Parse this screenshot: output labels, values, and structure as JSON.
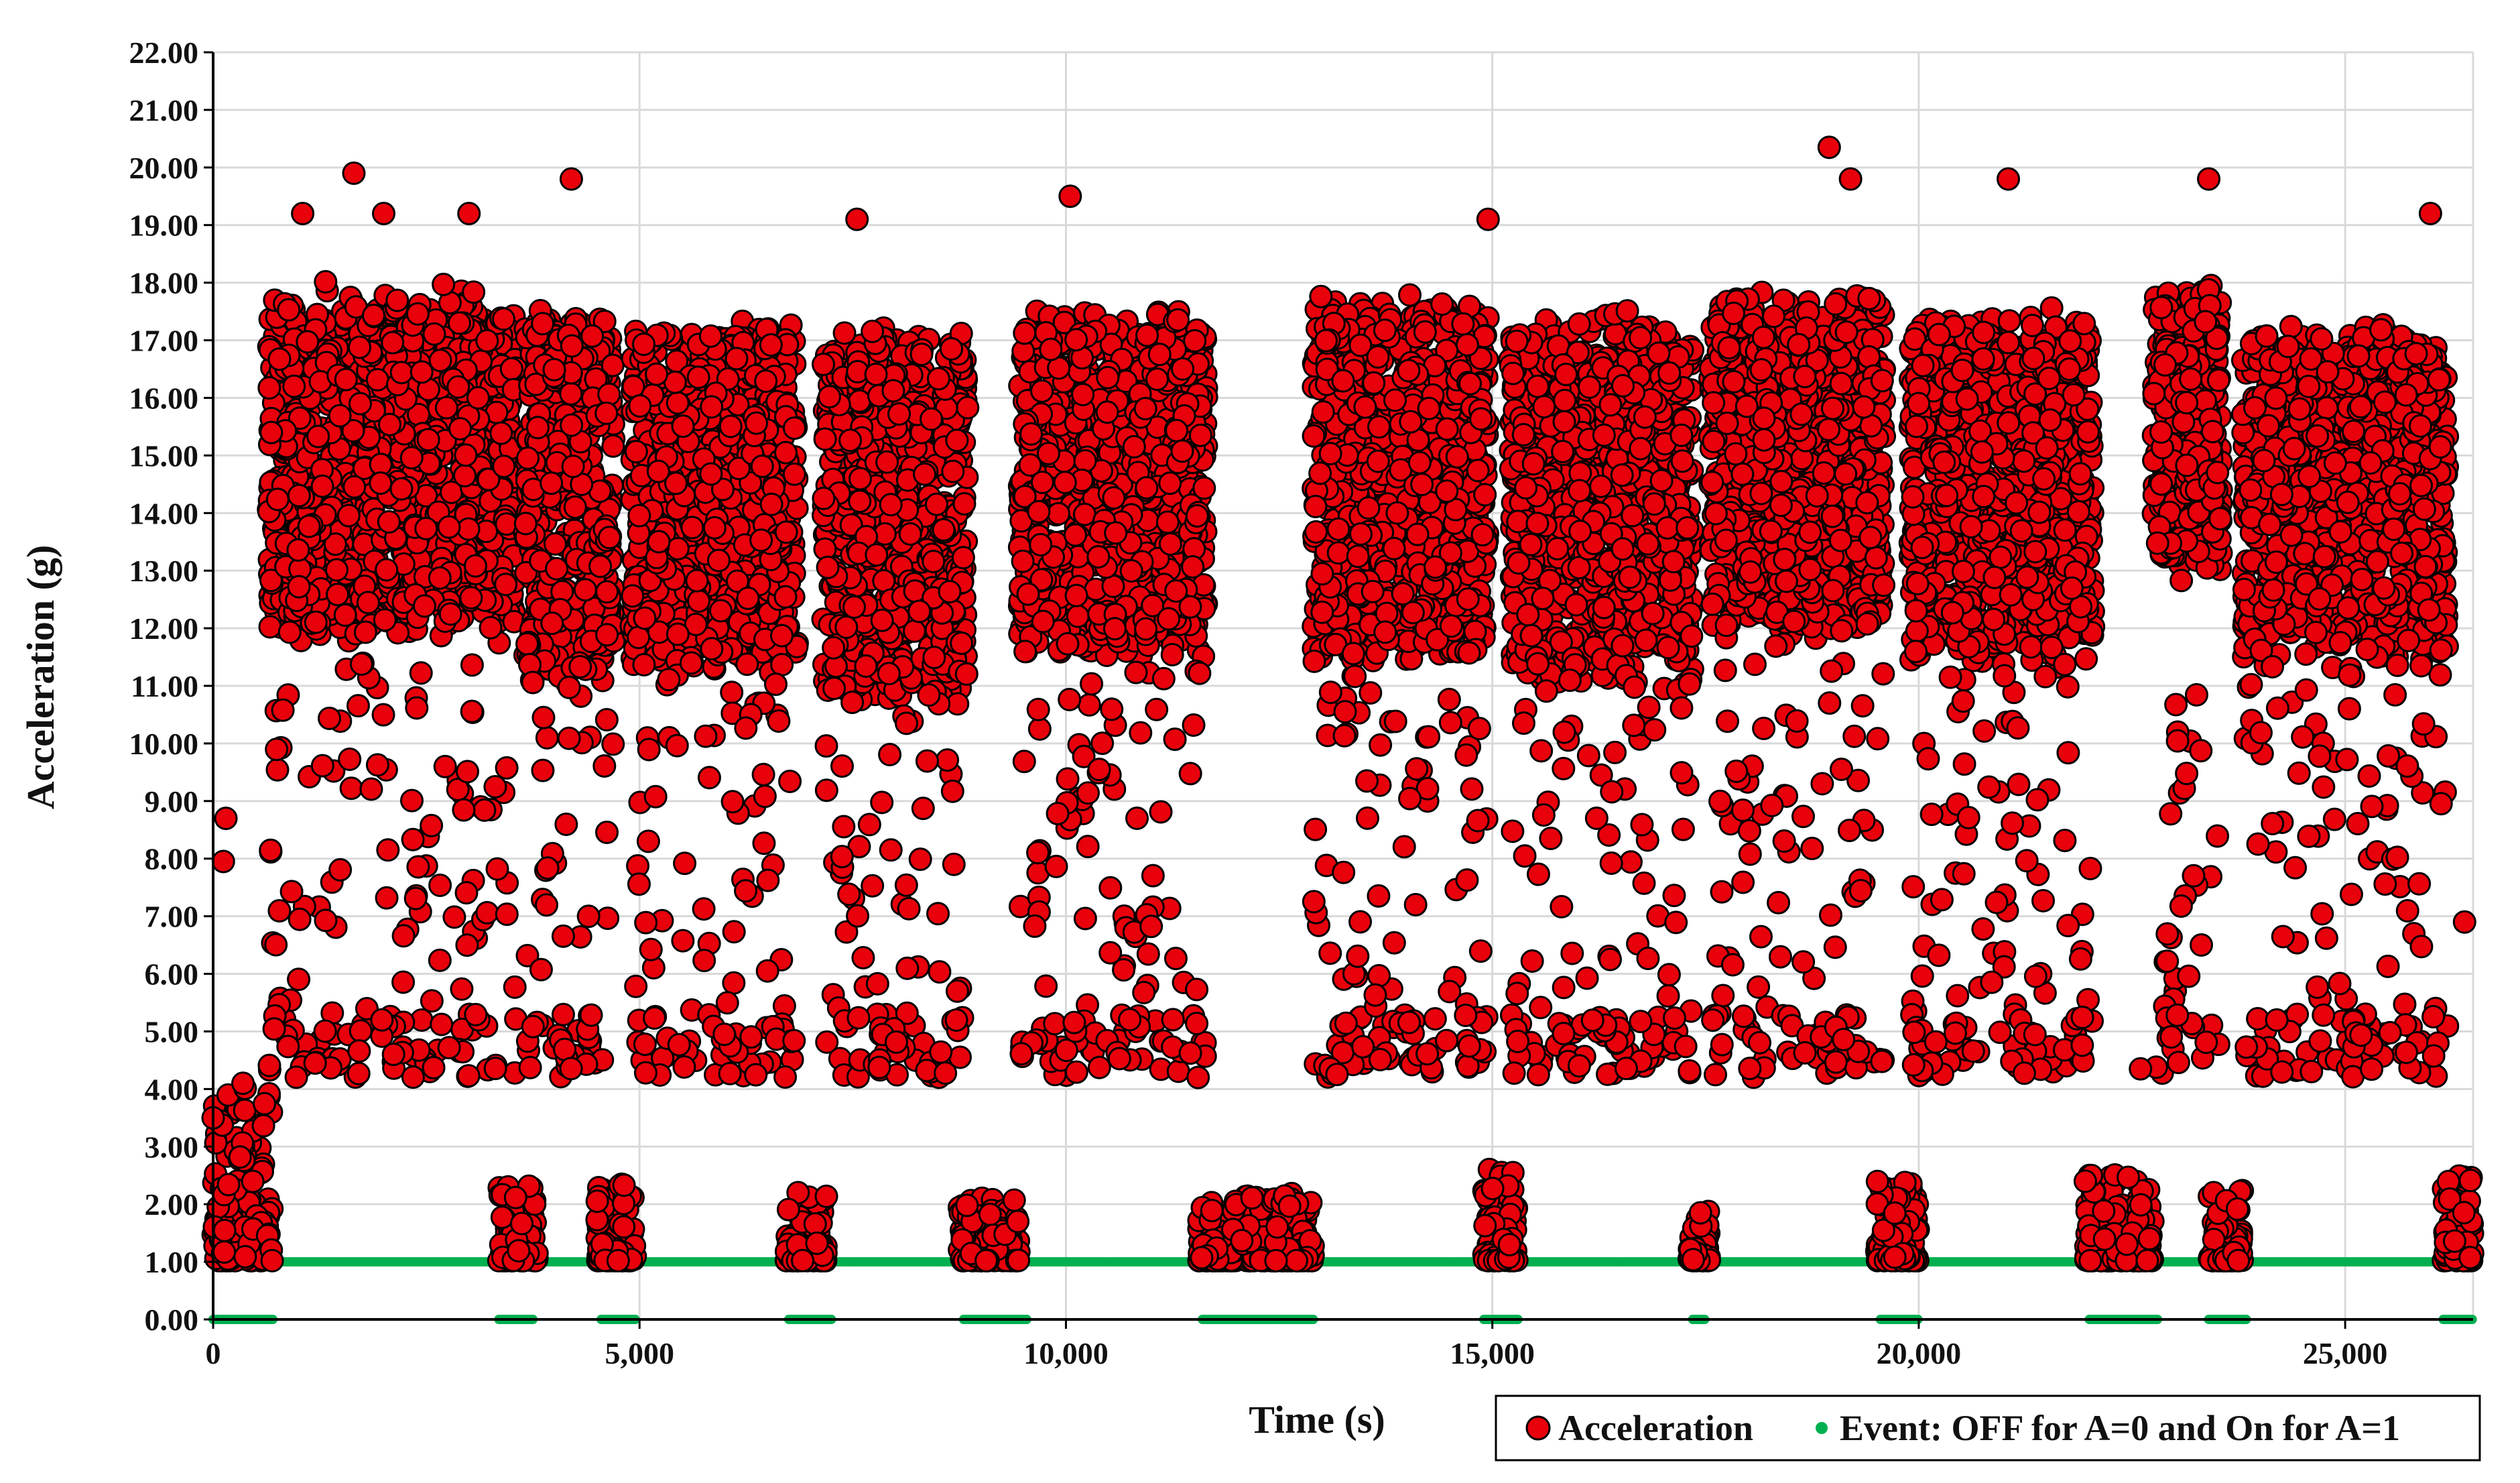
{
  "chart_data": {
    "type": "scatter",
    "xlabel": "Time (s)",
    "ylabel": "Acceleration (g)",
    "xlim": [
      0,
      26500
    ],
    "ylim": [
      0,
      22
    ],
    "x_ticks": [
      0,
      5000,
      10000,
      15000,
      20000,
      25000
    ],
    "x_tick_labels": [
      "0",
      "5,000",
      "10,000",
      "15,000",
      "20,000",
      "25,000"
    ],
    "y_ticks": [
      0,
      1,
      2,
      3,
      4,
      5,
      6,
      7,
      8,
      9,
      10,
      11,
      12,
      13,
      14,
      15,
      16,
      17,
      18,
      19,
      20,
      21,
      22
    ],
    "y_tick_labels": [
      "0.00",
      "1.00",
      "2.00",
      "3.00",
      "4.00",
      "5.00",
      "6.00",
      "7.00",
      "8.00",
      "9.00",
      "10.00",
      "11.00",
      "12.00",
      "13.00",
      "14.00",
      "15.00",
      "16.00",
      "17.00",
      "18.00",
      "19.00",
      "20.00",
      "21.00",
      "22.00"
    ],
    "grid": true,
    "legend_position": "bottom-right",
    "series": [
      {
        "name": "Acceleration",
        "color": "#e8000b",
        "edge_color": "#000000",
        "marker": "circle",
        "active_clusters": [
          {
            "x": [
              650,
              3550
            ],
            "y_center": 14.8,
            "y_spread": 3.2
          },
          {
            "x": [
              3650,
              4700
            ],
            "y_center": 14.3,
            "y_spread": 3.5
          },
          {
            "x": [
              4900,
              6850
            ],
            "y_center": 14.3,
            "y_spread": 3.2
          },
          {
            "x": [
              7150,
              8850
            ],
            "y_center": 13.9,
            "y_spread": 3.5
          },
          {
            "x": [
              9450,
              11650
            ],
            "y_center": 14.5,
            "y_spread": 3.2
          },
          {
            "x": [
              12900,
              14950
            ],
            "y_center": 14.5,
            "y_spread": 3.4
          },
          {
            "x": [
              15200,
              17350
            ],
            "y_center": 14.2,
            "y_spread": 3.4
          },
          {
            "x": [
              17550,
              19600
            ],
            "y_center": 14.8,
            "y_spread": 3.2
          },
          {
            "x": [
              19900,
              22050
            ],
            "y_center": 14.4,
            "y_spread": 3.2
          },
          {
            "x": [
              22750,
              23550
            ],
            "y_center": 15.5,
            "y_spread": 2.6
          },
          {
            "x": [
              23800,
              26200
            ],
            "y_center": 14.3,
            "y_spread": 3.0
          }
        ],
        "idle_clusters": [
          {
            "x": [
              0,
              700
            ],
            "y": [
              1.0,
              4.0
            ]
          },
          {
            "x": [
              3350,
              3800
            ],
            "y": [
              1.0,
              2.3
            ]
          },
          {
            "x": [
              4500,
              4950
            ],
            "y": [
              1.0,
              2.6
            ]
          },
          {
            "x": [
              6700,
              7200
            ],
            "y": [
              1.0,
              2.2
            ]
          },
          {
            "x": [
              8750,
              9450
            ],
            "y": [
              1.0,
              2.1
            ]
          },
          {
            "x": [
              11550,
              12900
            ],
            "y": [
              1.0,
              2.2
            ]
          },
          {
            "x": [
              14900,
              15300
            ],
            "y": [
              1.0,
              2.6
            ]
          },
          {
            "x": [
              17300,
              17550
            ],
            "y": [
              1.0,
              1.9
            ]
          },
          {
            "x": [
              19500,
              20000
            ],
            "y": [
              1.0,
              2.4
            ]
          },
          {
            "x": [
              21950,
              22750
            ],
            "y": [
              1.0,
              2.5
            ]
          },
          {
            "x": [
              23400,
              23800
            ],
            "y": [
              1.0,
              2.3
            ]
          },
          {
            "x": [
              26150,
              26500
            ],
            "y": [
              1.0,
              2.5
            ]
          }
        ],
        "notable_points": [
          {
            "x": 0,
            "y": 3.5
          },
          {
            "x": 120,
            "y": 7.95
          },
          {
            "x": 150,
            "y": 8.7
          },
          {
            "x": 350,
            "y": 4.1
          },
          {
            "x": 1050,
            "y": 19.2
          },
          {
            "x": 1650,
            "y": 19.9
          },
          {
            "x": 2000,
            "y": 19.2
          },
          {
            "x": 3000,
            "y": 19.2
          },
          {
            "x": 4200,
            "y": 19.8
          },
          {
            "x": 7550,
            "y": 19.1
          },
          {
            "x": 10050,
            "y": 19.5
          },
          {
            "x": 14950,
            "y": 19.1
          },
          {
            "x": 18950,
            "y": 20.35
          },
          {
            "x": 19200,
            "y": 19.8
          },
          {
            "x": 21050,
            "y": 19.8
          },
          {
            "x": 23400,
            "y": 19.8
          },
          {
            "x": 26000,
            "y": 19.2
          },
          {
            "x": 11550,
            "y": 4.2
          },
          {
            "x": 22600,
            "y": 4.35
          },
          {
            "x": 26400,
            "y": 6.9
          }
        ]
      },
      {
        "name": "Event: OFF for A=0 and On for A=1",
        "color": "#00b050",
        "marker": "small-dot",
        "states": [
          {
            "x": [
              0,
              700
            ],
            "y": 0
          },
          {
            "x": [
              700,
              3350
            ],
            "y": 1
          },
          {
            "x": [
              3350,
              3750
            ],
            "y": 0
          },
          {
            "x": [
              3750,
              4550
            ],
            "y": 1
          },
          {
            "x": [
              4550,
              4950
            ],
            "y": 0
          },
          {
            "x": [
              4950,
              6750
            ],
            "y": 1
          },
          {
            "x": [
              6750,
              7250
            ],
            "y": 0
          },
          {
            "x": [
              7250,
              8800
            ],
            "y": 1
          },
          {
            "x": [
              8800,
              9550
            ],
            "y": 0
          },
          {
            "x": [
              9550,
              11600
            ],
            "y": 1
          },
          {
            "x": [
              11600,
              12900
            ],
            "y": 0
          },
          {
            "x": [
              12900,
              14900
            ],
            "y": 1
          },
          {
            "x": [
              14900,
              15300
            ],
            "y": 0
          },
          {
            "x": [
              15300,
              17350
            ],
            "y": 1
          },
          {
            "x": [
              17350,
              17500
            ],
            "y": 0
          },
          {
            "x": [
              17500,
              19550
            ],
            "y": 1
          },
          {
            "x": [
              19550,
              20000
            ],
            "y": 0
          },
          {
            "x": [
              20000,
              22000
            ],
            "y": 1
          },
          {
            "x": [
              22000,
              22800
            ],
            "y": 0
          },
          {
            "x": [
              22800,
              23400
            ],
            "y": 1
          },
          {
            "x": [
              23400,
              23850
            ],
            "y": 0
          },
          {
            "x": [
              23850,
              26150
            ],
            "y": 1
          },
          {
            "x": [
              26150,
              26500
            ],
            "y": 0
          }
        ]
      }
    ]
  }
}
